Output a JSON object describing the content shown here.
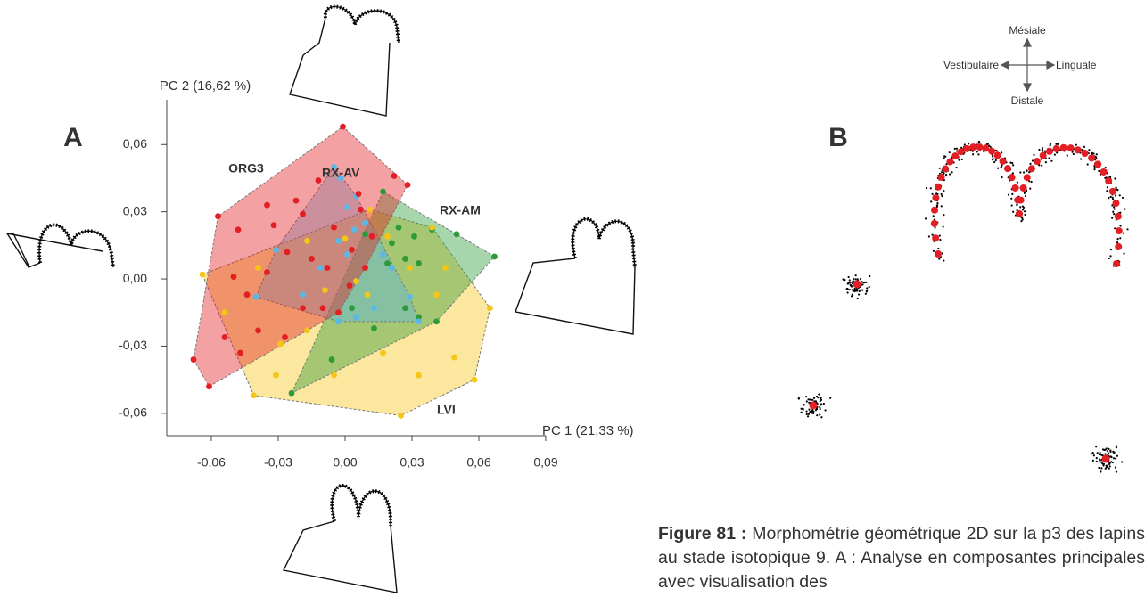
{
  "chart_data": {
    "type": "scatter",
    "x_label": "PC 1 (21,33 %)",
    "y_label": "PC 2 (16,62 %)",
    "xlim": [
      -0.08,
      0.09
    ],
    "ylim": [
      -0.07,
      0.08
    ],
    "xticks": [
      {
        "value": -0.06,
        "label": "-0,06"
      },
      {
        "value": -0.03,
        "label": "-0,03"
      },
      {
        "value": 0,
        "label": "0,00"
      },
      {
        "value": 0.03,
        "label": "0,03"
      },
      {
        "value": 0.06,
        "label": "0,06"
      },
      {
        "value": 0.09,
        "label": "0,09"
      }
    ],
    "yticks": [
      {
        "value": -0.06,
        "label": "-0,06"
      },
      {
        "value": -0.03,
        "label": "-0,03"
      },
      {
        "value": 0,
        "label": "0,00"
      },
      {
        "value": 0.03,
        "label": "0,03"
      },
      {
        "value": 0.06,
        "label": "0,06"
      }
    ],
    "convex_hulls": true,
    "series": [
      {
        "name": "LVI",
        "color": "#f5c518",
        "x": [
          -0.064,
          -0.041,
          0.025,
          0.058,
          0.065,
          0.049,
          0.039,
          0.045,
          0.041,
          -0.039,
          -0.054,
          -0.029,
          -0.017,
          -0.009,
          -0.017,
          0.0,
          0.011,
          0.019,
          0.029,
          0.01,
          0.005,
          0.033,
          0.017,
          -0.005,
          -0.031
        ],
        "values": [
          0.002,
          -0.052,
          -0.061,
          -0.045,
          -0.013,
          -0.035,
          0.023,
          0.005,
          -0.007,
          0.005,
          -0.015,
          -0.029,
          -0.023,
          -0.005,
          0.017,
          0.018,
          0.031,
          0.019,
          0.005,
          -0.007,
          -0.001,
          -0.043,
          -0.033,
          -0.043,
          -0.043
        ]
      },
      {
        "name": "RX-AM",
        "color": "#2e9a3a",
        "x": [
          0.017,
          0.05,
          0.067,
          0.039,
          0.024,
          0.027,
          0.033,
          0.009,
          0.021,
          0.019,
          0.027,
          0.033,
          0.041,
          -0.006,
          -0.024,
          0.013,
          0.003,
          0.031
        ],
        "values": [
          0.039,
          0.02,
          0.01,
          0.022,
          0.023,
          0.009,
          0.007,
          0.02,
          0.016,
          0.007,
          -0.013,
          -0.017,
          -0.019,
          -0.036,
          -0.051,
          -0.022,
          -0.013,
          0.019
        ]
      },
      {
        "name": "RX-AV",
        "color": "#5bb8e6",
        "x": [
          -0.005,
          -0.002,
          0.005,
          0.001,
          0.009,
          0.004,
          -0.003,
          0.001,
          -0.011,
          -0.019,
          -0.04,
          -0.031,
          0.021,
          0.029,
          0.033,
          0.005,
          0.013,
          -0.003,
          0.017
        ],
        "values": [
          0.05,
          0.045,
          0.037,
          0.032,
          0.025,
          0.022,
          0.017,
          0.011,
          0.005,
          -0.007,
          -0.008,
          0.013,
          0.005,
          -0.008,
          -0.019,
          -0.017,
          -0.013,
          -0.019,
          0.011
        ]
      },
      {
        "name": "ORG3",
        "color": "#e31e24",
        "x": [
          -0.001,
          -0.068,
          -0.061,
          -0.057,
          -0.048,
          -0.035,
          -0.022,
          -0.012,
          0.006,
          0.022,
          0.028,
          0.007,
          -0.019,
          -0.005,
          -0.032,
          -0.05,
          -0.044,
          -0.035,
          -0.026,
          -0.015,
          -0.008,
          0.003,
          0.009,
          0.002,
          -0.01,
          -0.019,
          -0.039,
          -0.054,
          -0.027,
          -0.003,
          0.012,
          -0.047
        ],
        "values": [
          0.068,
          -0.036,
          -0.048,
          0.028,
          0.022,
          0.033,
          0.035,
          0.044,
          0.038,
          0.046,
          0.042,
          0.031,
          0.029,
          0.023,
          0.024,
          0.001,
          -0.007,
          0.003,
          0.012,
          0.009,
          0.005,
          0.013,
          0.005,
          -0.003,
          -0.013,
          -0.013,
          -0.023,
          -0.026,
          -0.026,
          -0.015,
          0.019,
          -0.033
        ]
      }
    ]
  },
  "panel_labels": [
    "A",
    "B"
  ],
  "orientation": {
    "top": "Mésiale",
    "left": "Vestibulaire",
    "right": "Linguale",
    "bottom": "Distale"
  },
  "caption": {
    "label": "Figure 81 :",
    "text": "Morphométrie géométrique 2D sur la p3 des lapins au stade isotopique 9. A : Analyse en composantes principales avec visualisation des"
  }
}
